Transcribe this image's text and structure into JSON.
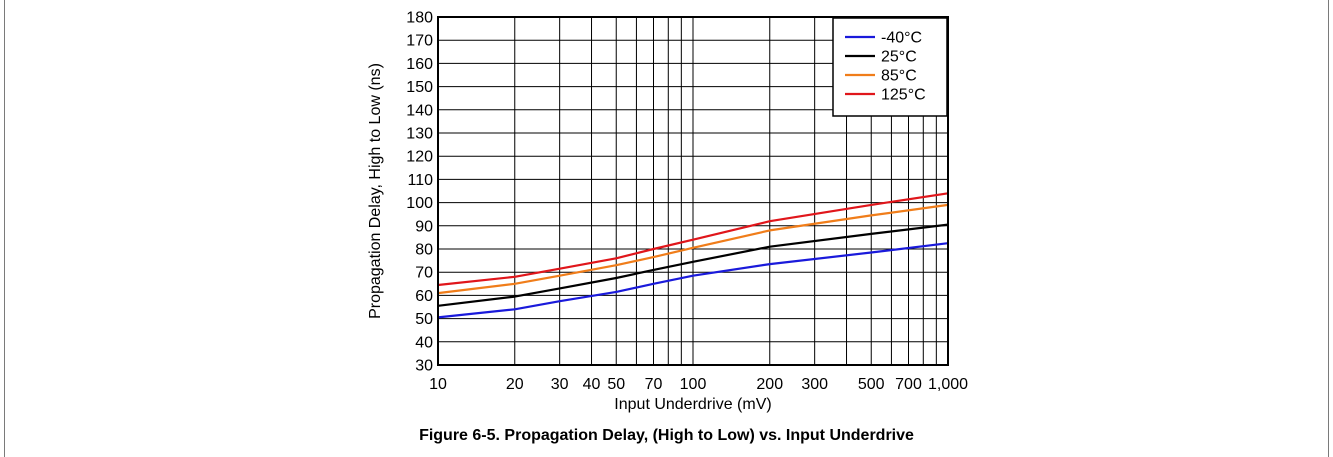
{
  "chart_data": {
    "type": "line",
    "xscale": "log",
    "xlabel": "Input Underdrive (mV)",
    "ylabel": "Propagation Delay, High to Low (ns)",
    "xlim": [
      10,
      1000
    ],
    "ylim": [
      30,
      180
    ],
    "grid": true,
    "legend_position": "top-right",
    "x_tick_labels": [
      {
        "value": 10,
        "label": "10"
      },
      {
        "value": 20,
        "label": "20"
      },
      {
        "value": 30,
        "label": "30"
      },
      {
        "value": 40,
        "label": "40"
      },
      {
        "value": 50,
        "label": "50"
      },
      {
        "value": 70,
        "label": "70"
      },
      {
        "value": 100,
        "label": "100"
      },
      {
        "value": 200,
        "label": "200"
      },
      {
        "value": 300,
        "label": "300"
      },
      {
        "value": 500,
        "label": "500"
      },
      {
        "value": 700,
        "label": "700"
      },
      {
        "value": 1000,
        "label": "1,000"
      }
    ],
    "y_ticks": [
      30,
      40,
      50,
      60,
      70,
      80,
      90,
      100,
      110,
      120,
      130,
      140,
      150,
      160,
      170,
      180
    ],
    "series": [
      {
        "name": "-40°C",
        "color": "#1a1adb",
        "x": [
          10,
          20,
          30,
          50,
          70,
          100,
          200,
          500,
          1000
        ],
        "y": [
          50.5,
          54,
          57.5,
          61.5,
          65,
          68.5,
          73.5,
          78.5,
          82.5
        ]
      },
      {
        "name": "25°C",
        "color": "#000000",
        "x": [
          10,
          20,
          30,
          50,
          70,
          100,
          200,
          500,
          1000
        ],
        "y": [
          55.5,
          59.5,
          63,
          67.5,
          71,
          74.5,
          81,
          86.5,
          90.5
        ]
      },
      {
        "name": "85°C",
        "color": "#f07d1a",
        "x": [
          10,
          20,
          30,
          50,
          70,
          100,
          200,
          500,
          1000
        ],
        "y": [
          61,
          65,
          68.5,
          73,
          76.5,
          80.5,
          88,
          94.5,
          99
        ]
      },
      {
        "name": "125°C",
        "color": "#e0161b",
        "x": [
          10,
          20,
          30,
          50,
          70,
          100,
          200,
          500,
          1000
        ],
        "y": [
          64.5,
          68,
          71.5,
          76,
          80,
          84,
          92,
          99,
          104
        ]
      }
    ]
  },
  "caption": "Figure 6-5. Propagation Delay, (High to Low) vs. Input Underdrive"
}
